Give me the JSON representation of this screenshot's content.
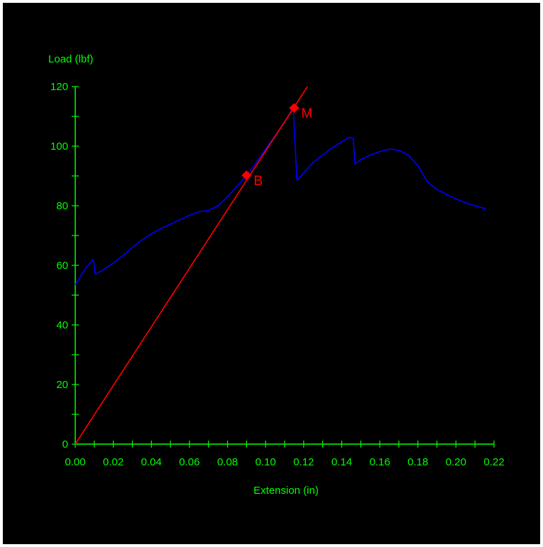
{
  "chart_data": {
    "type": "line",
    "title": "",
    "xlabel": "Extension (in)",
    "ylabel": "Load (lbf)",
    "xlim": [
      0,
      0.22
    ],
    "ylim": [
      0,
      120
    ],
    "x_ticks": [
      "0.00",
      "0.02",
      "0.04",
      "0.06",
      "0.08",
      "0.10",
      "0.12",
      "0.14",
      "0.16",
      "0.18",
      "0.20",
      "0.22"
    ],
    "y_ticks": [
      "0",
      "20",
      "40",
      "60",
      "80",
      "100",
      "120"
    ],
    "x_tick_values": [
      0,
      0.02,
      0.04,
      0.06,
      0.08,
      0.1,
      0.12,
      0.14,
      0.16,
      0.18,
      0.2,
      0.22
    ],
    "y_tick_values": [
      0,
      20,
      40,
      60,
      80,
      100,
      120
    ],
    "x_minor_step": 0.01,
    "y_minor_step": 10,
    "grid": false,
    "series": [
      {
        "color": "#0000ff",
        "points": [
          [
            0.0,
            53.5
          ],
          [
            0.003,
            56.5
          ],
          [
            0.006,
            59.5
          ],
          [
            0.0095,
            62.0
          ],
          [
            0.0105,
            57.0
          ],
          [
            0.015,
            58.6
          ],
          [
            0.02,
            60.8
          ],
          [
            0.025,
            63.2
          ],
          [
            0.03,
            66.0
          ],
          [
            0.035,
            68.5
          ],
          [
            0.04,
            70.6
          ],
          [
            0.045,
            72.3
          ],
          [
            0.05,
            73.8
          ],
          [
            0.055,
            75.3
          ],
          [
            0.06,
            76.8
          ],
          [
            0.065,
            78.0
          ],
          [
            0.07,
            78.4
          ],
          [
            0.075,
            80.0
          ],
          [
            0.08,
            83.0
          ],
          [
            0.085,
            86.5
          ],
          [
            0.09,
            90.2
          ],
          [
            0.095,
            94.5
          ],
          [
            0.1,
            99.0
          ],
          [
            0.105,
            103.5
          ],
          [
            0.11,
            108.0
          ],
          [
            0.1145,
            113.0
          ],
          [
            0.1155,
            100.0
          ],
          [
            0.1165,
            88.5
          ],
          [
            0.12,
            91.0
          ],
          [
            0.125,
            94.5
          ],
          [
            0.13,
            97.0
          ],
          [
            0.135,
            99.5
          ],
          [
            0.14,
            101.5
          ],
          [
            0.144,
            103.0
          ],
          [
            0.146,
            102.5
          ],
          [
            0.147,
            94.0
          ],
          [
            0.15,
            95.5
          ],
          [
            0.155,
            97.0
          ],
          [
            0.16,
            98.2
          ],
          [
            0.165,
            99.0
          ],
          [
            0.17,
            98.6
          ],
          [
            0.175,
            97.0
          ],
          [
            0.18,
            93.5
          ],
          [
            0.185,
            88.0
          ],
          [
            0.19,
            85.5
          ],
          [
            0.195,
            83.8
          ],
          [
            0.2,
            82.3
          ],
          [
            0.205,
            81.0
          ],
          [
            0.21,
            80.0
          ],
          [
            0.2155,
            79.0
          ]
        ]
      },
      {
        "color": "#ff0000",
        "points": [
          [
            0.0,
            0.0
          ],
          [
            0.122,
            120.0
          ]
        ]
      }
    ],
    "markers": [
      {
        "label": "B",
        "x": 0.09,
        "y": 90.2,
        "color": "#ff0000"
      },
      {
        "label": "M",
        "x": 0.115,
        "y": 112.8,
        "color": "#ff0000"
      }
    ],
    "colors": {
      "background": "#000000",
      "axis": "#00ff00",
      "text": "#00ff00"
    }
  }
}
